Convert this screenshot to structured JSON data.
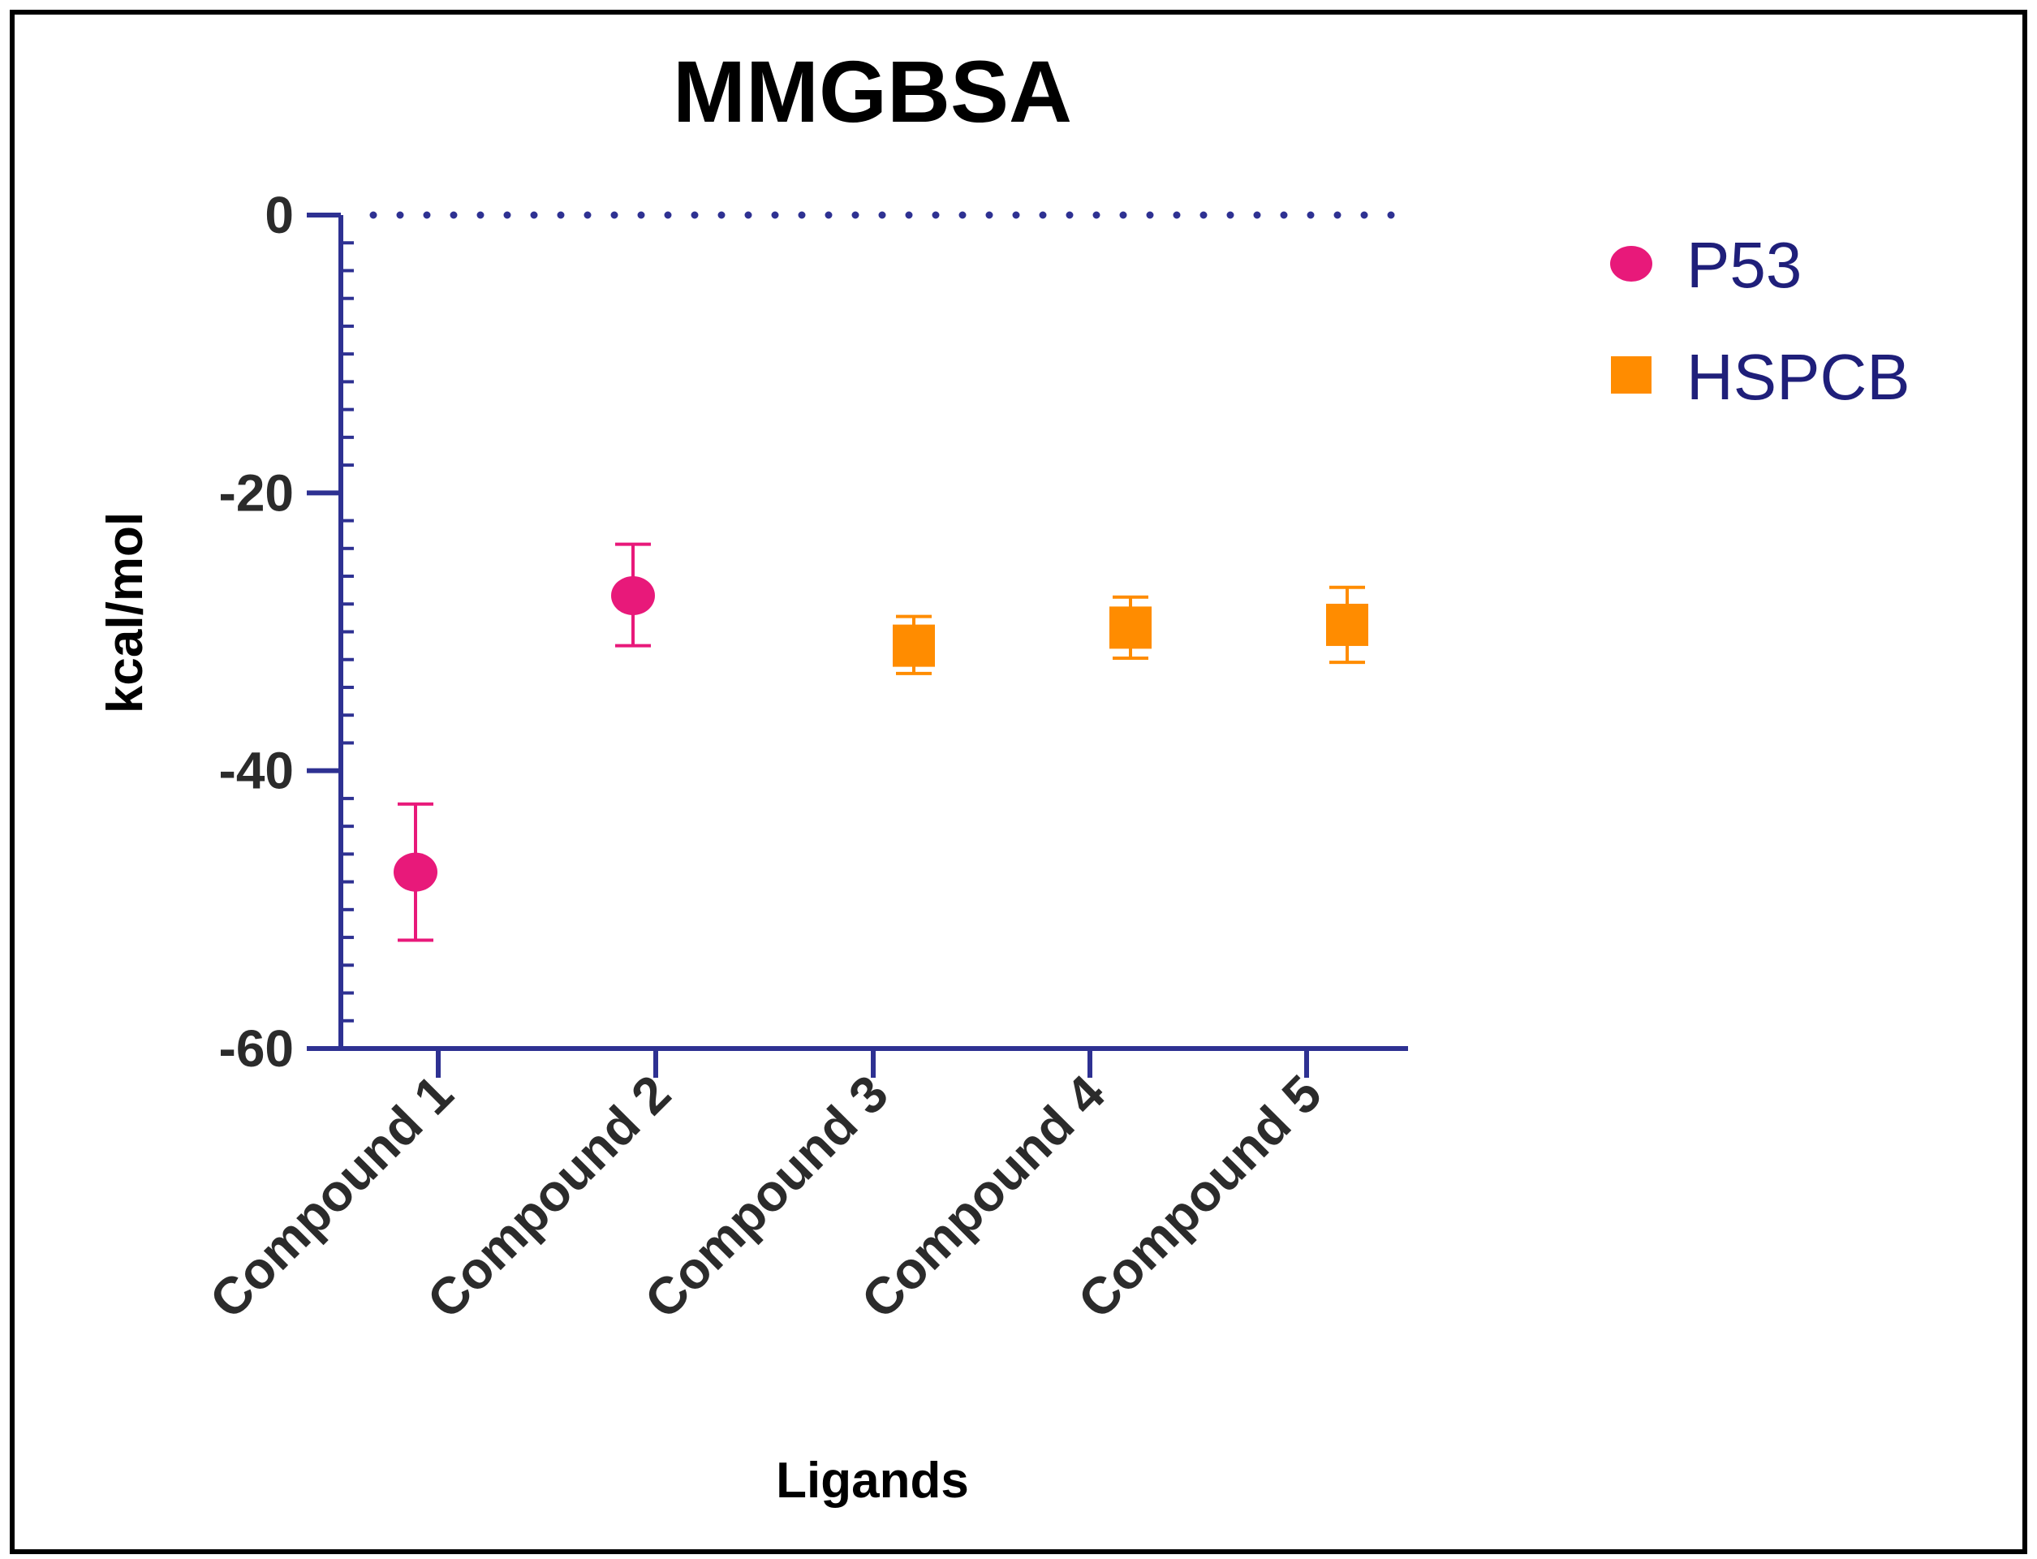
{
  "chart_data": {
    "type": "scatter",
    "title": "MMGBSA",
    "xlabel": "Ligands",
    "ylabel": "kcal/mol",
    "ylim": [
      -60,
      0
    ],
    "yticks": [
      0,
      -20,
      -40,
      -60
    ],
    "categories": [
      "Compound 1",
      "Compound 2",
      "Compound 3",
      "Compound 4",
      "Compound 5"
    ],
    "zero_line": "dotted",
    "legend_position": "top-right",
    "series": [
      {
        "name": "P53",
        "marker": "circle",
        "color": "#e8197a",
        "points": [
          {
            "category": "Compound 1",
            "value": -47.3,
            "error_low": -52.2,
            "error_high": -42.4
          },
          {
            "category": "Compound 2",
            "value": -27.4,
            "error_low": -31.0,
            "error_high": -23.7
          }
        ]
      },
      {
        "name": "HSPCB",
        "marker": "square",
        "color": "#ff8c00",
        "points": [
          {
            "category": "Compound 3",
            "value": -31.0,
            "error_low": -33.0,
            "error_high": -28.9
          },
          {
            "category": "Compound 4",
            "value": -29.7,
            "error_low": -31.9,
            "error_high": -27.5
          },
          {
            "category": "Compound 5",
            "value": -29.5,
            "error_low": -32.2,
            "error_high": -26.8
          }
        ]
      }
    ]
  }
}
